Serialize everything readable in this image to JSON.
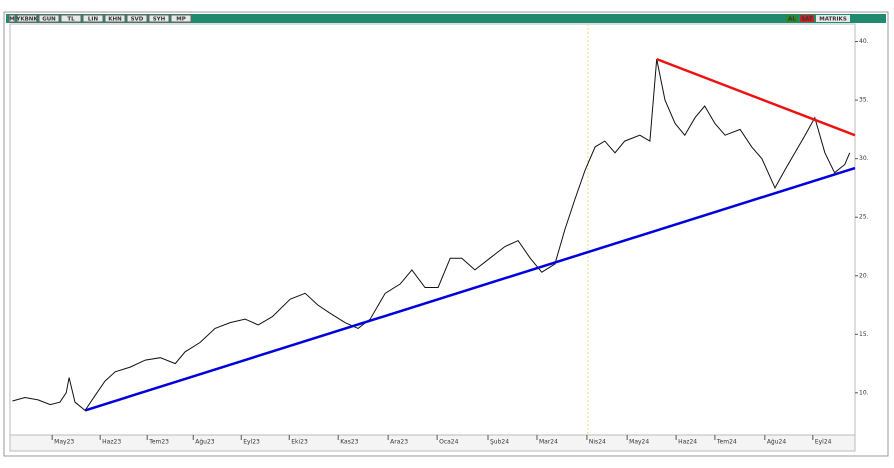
{
  "toolbar": {
    "left": [
      "M",
      "YKBNK",
      "GUN",
      "TL",
      "LIN",
      "KHN",
      "SVD",
      "SYH",
      "MP"
    ],
    "right": [
      "AL",
      "SAT",
      "MATRIKS"
    ]
  },
  "chart_data": {
    "type": "line",
    "x": [
      -0.82,
      -0.56,
      -0.29,
      -0.04,
      0.16,
      0.29,
      0.35,
      0.47,
      0.68,
      0.89,
      1.09,
      1.3,
      1.61,
      1.92,
      2.23,
      2.54,
      2.74,
      3.05,
      3.36,
      3.67,
      3.98,
      4.25,
      4.54,
      4.91,
      5.22,
      5.48,
      5.73,
      6.04,
      6.31,
      6.56,
      6.87,
      7.18,
      7.42,
      7.69,
      7.96,
      8.21,
      8.45,
      8.72,
      9.03,
      9.34,
      9.61,
      9.86,
      10.1,
      10.37,
      10.58,
      10.78,
      10.99,
      11.2,
      11.4,
      11.61,
      11.81,
      12.12,
      12.33,
      12.47,
      12.64,
      12.85,
      13.05,
      13.26,
      13.46,
      13.67,
      13.88,
      14.19,
      14.43,
      14.64,
      14.91,
      15.11,
      15.32,
      15.53,
      15.73,
      15.94,
      16.14,
      16.35,
      16.45
    ],
    "series": [
      {
        "color": "#111111",
        "values": [
          9.3,
          9.6,
          9.4,
          9.0,
          9.2,
          10.0,
          11.3,
          9.2,
          8.5,
          9.8,
          11.0,
          11.8,
          12.2,
          12.8,
          13.0,
          12.5,
          13.5,
          14.3,
          15.5,
          16.0,
          16.3,
          15.8,
          16.5,
          18.0,
          18.5,
          17.5,
          16.8,
          16.0,
          15.5,
          16.3,
          18.5,
          19.3,
          20.5,
          19.0,
          19.0,
          21.5,
          21.5,
          20.5,
          21.5,
          22.5,
          23.0,
          21.5,
          20.3,
          21.0,
          24.0,
          26.5,
          29.0,
          31.0,
          31.5,
          30.5,
          31.5,
          32.0,
          31.5,
          38.5,
          35.0,
          33.0,
          32.0,
          33.5,
          34.5,
          33.0,
          32.0,
          32.5,
          31.0,
          30.0,
          27.5,
          29.0,
          30.5,
          32.0,
          33.5,
          30.5,
          28.8,
          29.5,
          30.5
        ]
      }
    ],
    "trendlines": [
      {
        "color": "#0000dd",
        "x": [
          0.68,
          16.56
        ],
        "y": [
          8.5,
          29.2
        ]
      },
      {
        "color": "#ee1111",
        "x": [
          12.47,
          16.56
        ],
        "y": [
          38.5,
          32.0
        ]
      }
    ],
    "vline": 11.05,
    "xlim": [
      -0.87,
      16.56
    ],
    "ylim": [
      6.4,
      41.5
    ],
    "xticks": [
      {
        "value": 0,
        "label": "May23"
      },
      {
        "value": 0.99,
        "label": "Haz23"
      },
      {
        "value": 1.96,
        "label": "Tem23"
      },
      {
        "value": 2.91,
        "label": "Ağu23"
      },
      {
        "value": 3.9,
        "label": "Eyl23"
      },
      {
        "value": 4.89,
        "label": "Eki23"
      },
      {
        "value": 5.9,
        "label": "Kas23"
      },
      {
        "value": 6.93,
        "label": "Ara23"
      },
      {
        "value": 7.94,
        "label": "Oca24"
      },
      {
        "value": 8.99,
        "label": "Şub24"
      },
      {
        "value": 10.0,
        "label": "Mar24"
      },
      {
        "value": 11.03,
        "label": "Nis24"
      },
      {
        "value": 11.86,
        "label": "May24"
      },
      {
        "value": 12.87,
        "label": "Haz24"
      },
      {
        "value": 13.67,
        "label": "Tem24"
      },
      {
        "value": 14.7,
        "label": "Ağu24"
      },
      {
        "value": 15.69,
        "label": "Eyl24"
      }
    ],
    "yticks": [
      {
        "value": 10,
        "label": "10."
      },
      {
        "value": 15,
        "label": "15."
      },
      {
        "value": 20,
        "label": "20."
      },
      {
        "value": 25,
        "label": "25."
      },
      {
        "value": 30,
        "label": "30."
      },
      {
        "value": 35,
        "label": "35."
      },
      {
        "value": 40,
        "label": "40."
      }
    ]
  }
}
